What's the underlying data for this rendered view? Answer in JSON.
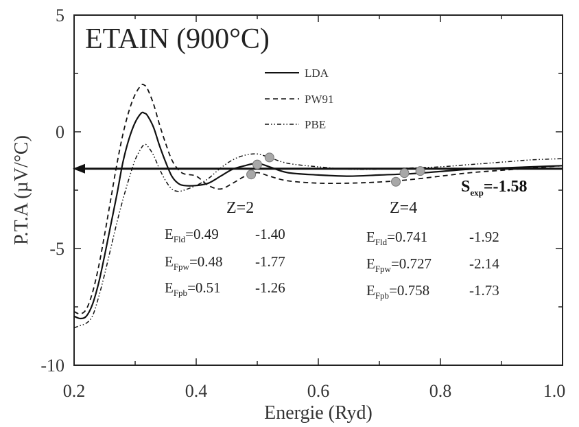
{
  "chart_data": {
    "type": "line",
    "title": "ETAIN (900°C)",
    "xlabel": "Energie (Ryd)",
    "ylabel": "P.T.A (µV/°C)",
    "xlim": [
      0.2,
      1.0
    ],
    "ylim": [
      -10,
      5
    ],
    "xticks": [
      "0.2",
      "0.4",
      "0.6",
      "0.8",
      "1.0"
    ],
    "yticks": [
      "5",
      "0",
      "-5",
      "-10"
    ],
    "grid": false,
    "legend_position": "top-center",
    "series": [
      {
        "name": "LDA",
        "style": "solid",
        "x": [
          0.2,
          0.21,
          0.22,
          0.23,
          0.24,
          0.25,
          0.26,
          0.27,
          0.28,
          0.29,
          0.3,
          0.31,
          0.315,
          0.32,
          0.33,
          0.34,
          0.35,
          0.36,
          0.37,
          0.38,
          0.4,
          0.42,
          0.44,
          0.46,
          0.48,
          0.5,
          0.52,
          0.55,
          0.6,
          0.65,
          0.7,
          0.75,
          0.8,
          0.85,
          0.9,
          0.95,
          1.0
        ],
        "y": [
          -7.9,
          -8.0,
          -7.9,
          -7.4,
          -6.5,
          -5.3,
          -4.0,
          -2.7,
          -1.3,
          -0.3,
          0.4,
          0.8,
          0.8,
          0.7,
          0.2,
          -0.6,
          -1.3,
          -1.9,
          -2.2,
          -2.3,
          -2.3,
          -2.2,
          -1.9,
          -1.6,
          -1.45,
          -1.35,
          -1.5,
          -1.75,
          -1.85,
          -1.9,
          -1.85,
          -1.8,
          -1.7,
          -1.6,
          -1.55,
          -1.5,
          -1.45
        ]
      },
      {
        "name": "PW91",
        "style": "dashed",
        "x": [
          0.2,
          0.21,
          0.22,
          0.23,
          0.24,
          0.25,
          0.26,
          0.27,
          0.28,
          0.29,
          0.3,
          0.31,
          0.315,
          0.32,
          0.33,
          0.34,
          0.35,
          0.36,
          0.37,
          0.38,
          0.4,
          0.42,
          0.44,
          0.46,
          0.48,
          0.5,
          0.52,
          0.55,
          0.6,
          0.65,
          0.7,
          0.75,
          0.8,
          0.85,
          0.9,
          0.95,
          1.0
        ],
        "y": [
          -7.7,
          -7.8,
          -7.6,
          -6.9,
          -5.8,
          -4.4,
          -2.9,
          -1.4,
          -0.1,
          0.9,
          1.6,
          2.0,
          2.0,
          1.85,
          1.2,
          0.3,
          -0.5,
          -1.2,
          -1.6,
          -1.8,
          -1.9,
          -2.3,
          -2.45,
          -2.2,
          -1.9,
          -1.75,
          -1.9,
          -2.1,
          -2.2,
          -2.2,
          -2.15,
          -2.05,
          -1.9,
          -1.75,
          -1.65,
          -1.55,
          -1.45
        ]
      },
      {
        "name": "PBE",
        "style": "dash-dot",
        "x": [
          0.2,
          0.21,
          0.22,
          0.23,
          0.24,
          0.25,
          0.26,
          0.27,
          0.28,
          0.29,
          0.3,
          0.31,
          0.315,
          0.32,
          0.33,
          0.34,
          0.35,
          0.36,
          0.37,
          0.38,
          0.4,
          0.42,
          0.44,
          0.46,
          0.48,
          0.5,
          0.52,
          0.55,
          0.6,
          0.65,
          0.7,
          0.75,
          0.8,
          0.85,
          0.9,
          0.95,
          1.0
        ],
        "y": [
          -8.4,
          -8.3,
          -8.2,
          -7.9,
          -7.1,
          -6.1,
          -5.0,
          -3.9,
          -2.9,
          -2.0,
          -1.2,
          -0.7,
          -0.55,
          -0.6,
          -1.0,
          -1.6,
          -2.1,
          -2.45,
          -2.55,
          -2.5,
          -2.3,
          -2.0,
          -1.55,
          -1.2,
          -1.0,
          -0.95,
          -1.1,
          -1.35,
          -1.5,
          -1.6,
          -1.6,
          -1.55,
          -1.5,
          -1.4,
          -1.3,
          -1.2,
          -1.15
        ]
      }
    ],
    "reference_line": {
      "y": -1.58,
      "x_start": 1.0,
      "x_end": 0.2,
      "arrow": "left"
    },
    "markers": [
      {
        "x": 0.49,
        "y": -1.83
      },
      {
        "x": 0.5,
        "y": -1.4
      },
      {
        "x": 0.52,
        "y": -1.1
      },
      {
        "x": 0.727,
        "y": -2.14
      },
      {
        "x": 0.741,
        "y": -1.77
      },
      {
        "x": 0.767,
        "y": -1.68
      }
    ],
    "annotations": {
      "sexp": {
        "main": "S",
        "sub": "exp",
        "value": "=-1.58"
      },
      "groups": [
        {
          "heading": "Z=2",
          "rows": [
            {
              "e": "E",
              "sub": "Fld",
              "val": "=0.49",
              "s": "-1.40"
            },
            {
              "e": "E",
              "sub": "Fpw",
              "val": "=0.48",
              "s": "-1.77"
            },
            {
              "e": "E",
              "sub": "Fpb",
              "val": "=0.51",
              "s": "-1.26"
            }
          ]
        },
        {
          "heading": "Z=4",
          "rows": [
            {
              "e": "E",
              "sub": "Fld",
              "val": "=0.741",
              "s": "-1.92"
            },
            {
              "e": "E",
              "sub": "Fpw",
              "val": "=0.727",
              "s": "-2.14"
            },
            {
              "e": "E",
              "sub": "Fpb",
              "val": "=0.758",
              "s": "-1.73"
            }
          ]
        }
      ]
    }
  }
}
